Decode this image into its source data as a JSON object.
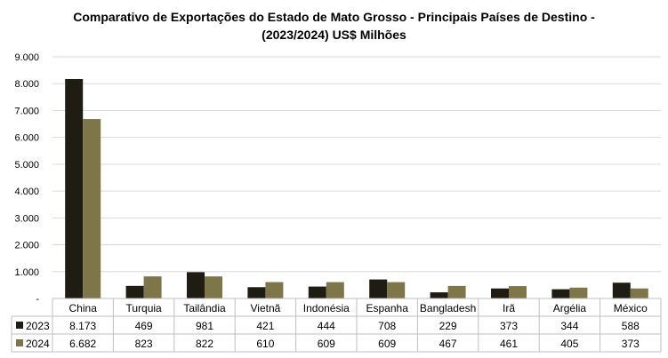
{
  "chart_data": {
    "type": "bar",
    "title_line1": "Comparativo de Exportações do Estado de Mato Grosso - Principais Países de Destino -",
    "title_line2": "(2023/2024) US$ Milhões",
    "categories": [
      "China",
      "Turquia",
      "Tailândia",
      "Vietnã",
      "Indonésia",
      "Espanha",
      "Bangladesh",
      "Irã",
      "Argélia",
      "México"
    ],
    "series": [
      {
        "name": "2023",
        "color": "#1f1c14",
        "values": [
          8173,
          469,
          981,
          421,
          444,
          708,
          229,
          373,
          344,
          588
        ],
        "labels": [
          "8.173",
          "469",
          "981",
          "421",
          "444",
          "708",
          "229",
          "373",
          "344",
          "588"
        ]
      },
      {
        "name": "2024",
        "color": "#7e7549",
        "values": [
          6682,
          823,
          822,
          610,
          609,
          609,
          467,
          461,
          405,
          373
        ],
        "labels": [
          "6.682",
          "823",
          "822",
          "610",
          "609",
          "609",
          "467",
          "461",
          "405",
          "373"
        ]
      }
    ],
    "ylim": [
      0,
      9000
    ],
    "yticks": [
      0,
      1000,
      2000,
      3000,
      4000,
      5000,
      6000,
      7000,
      8000,
      9000
    ],
    "ytick_labels": [
      "-",
      "1.000",
      "2.000",
      "3.000",
      "4.000",
      "5.000",
      "6.000",
      "7.000",
      "8.000",
      "9.000"
    ],
    "grid": true,
    "legend": "data-table"
  }
}
